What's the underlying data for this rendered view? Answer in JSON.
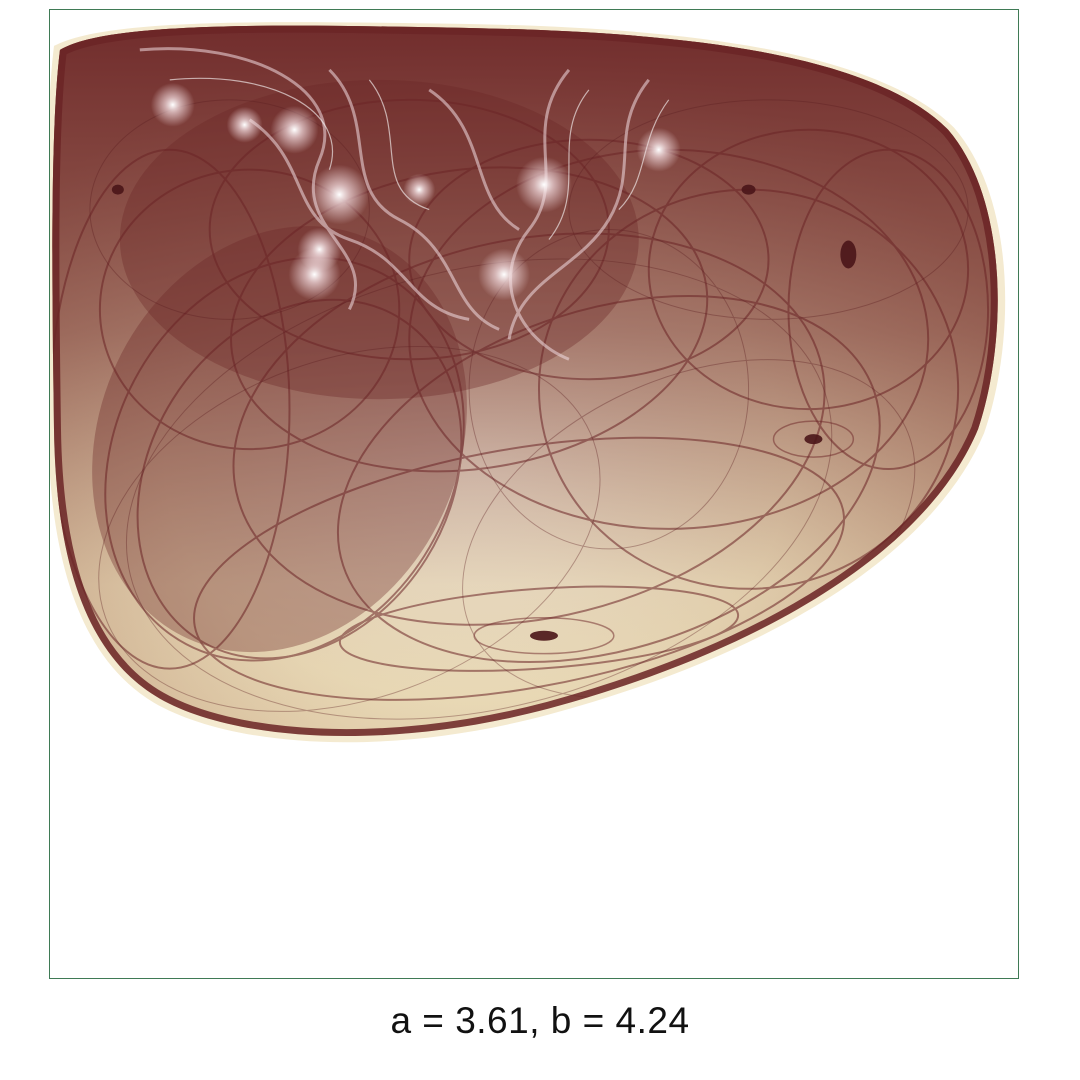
{
  "figure": {
    "caption": "a = 3.61, b = 4.24",
    "colors": {
      "background": "#ffffff",
      "frame_border": "#3f7a55",
      "ink": "#6b2426",
      "paper": "#f5ecd2",
      "highlight": "#ffffff"
    }
  }
}
